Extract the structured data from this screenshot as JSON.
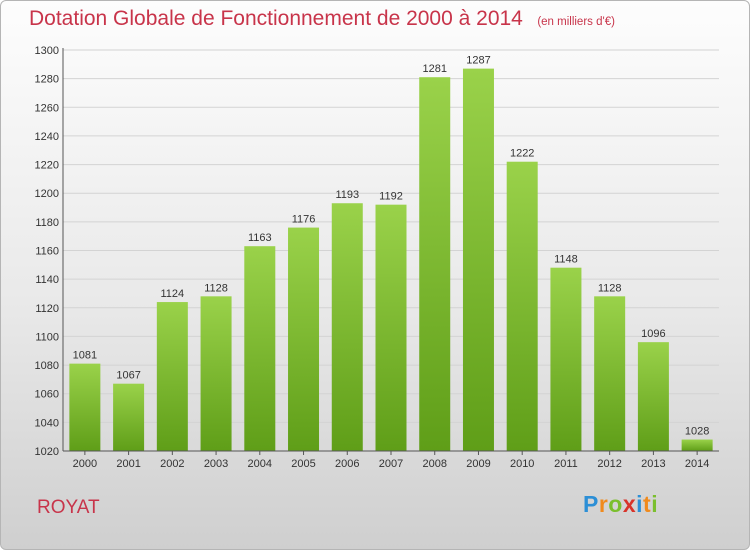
{
  "chart_data": {
    "type": "bar",
    "title": "Dotation Globale de Fonctionnement de 2000 à 2014",
    "subtitle": "(en milliers d'€)",
    "categories": [
      "2000",
      "2001",
      "2002",
      "2003",
      "2004",
      "2005",
      "2006",
      "2007",
      "2008",
      "2009",
      "2010",
      "2011",
      "2012",
      "2013",
      "2014"
    ],
    "values": [
      1081,
      1067,
      1124,
      1128,
      1163,
      1176,
      1193,
      1192,
      1281,
      1287,
      1222,
      1148,
      1128,
      1096,
      1028
    ],
    "ylim": [
      1020,
      1300
    ],
    "yticks": [
      1020,
      1040,
      1060,
      1080,
      1100,
      1120,
      1140,
      1160,
      1180,
      1200,
      1220,
      1240,
      1260,
      1280,
      1300
    ],
    "grid": true,
    "colors": {
      "bar_light": "#9ad24a",
      "bar_dark": "#5f9e18",
      "title": "#c8344a"
    }
  },
  "footer": {
    "place": "ROYAT"
  },
  "logo": {
    "text": "Proxiti",
    "letter_colors": [
      "#2c8fd6",
      "#f08a1c",
      "#7bbf2e",
      "#d8332a",
      "#2c8fd6",
      "#f08a1c",
      "#7bbf2e"
    ]
  }
}
